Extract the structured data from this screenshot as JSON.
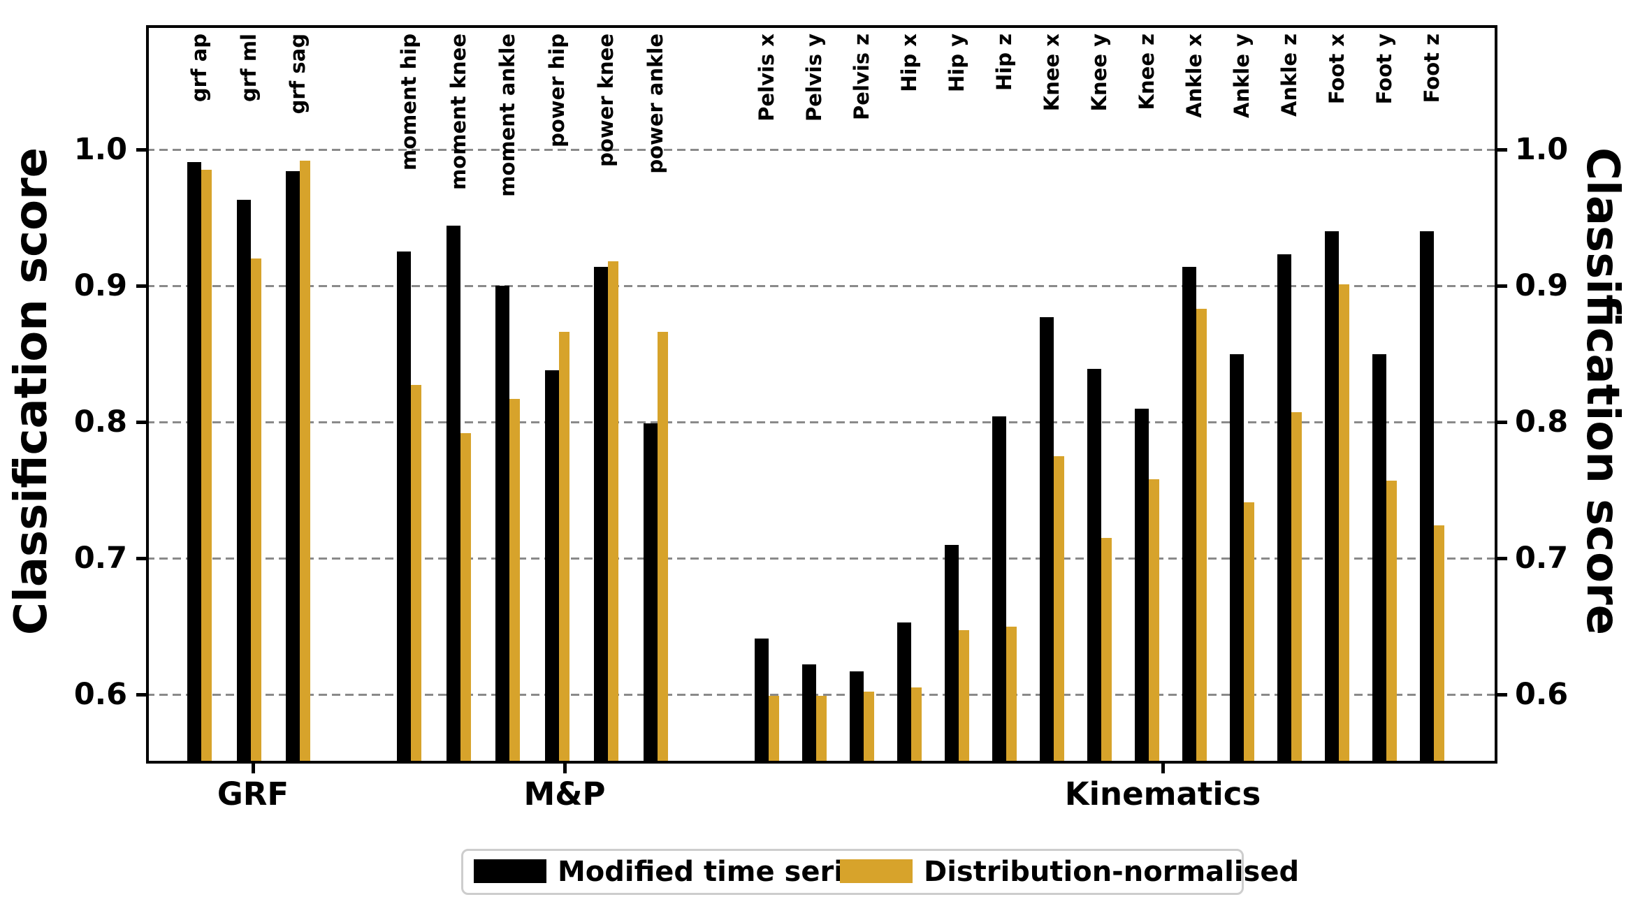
{
  "axis": {
    "ylabel_left": "Classification score",
    "ylabel_right": "Classification score",
    "yticks": [
      "1.0",
      "0.9",
      "0.8",
      "0.7",
      "0.6"
    ],
    "ytick_values": [
      1.0,
      0.9,
      0.8,
      0.7,
      0.6
    ],
    "xticks": [
      "GRF",
      "M&P",
      "Kinematics"
    ]
  },
  "legend": {
    "items": [
      {
        "label": "Modified time series",
        "color": "#000000"
      },
      {
        "label": "Distribution-normalised",
        "color": "#D7A32B"
      }
    ]
  },
  "colors": {
    "black_series": "#000000",
    "gold_series": "#D7A32B",
    "gridline": "#8a8a8a",
    "legend_border": "#cdcdcd"
  },
  "chart_data": {
    "type": "bar",
    "title": "",
    "ylabel": "Classification score",
    "ylim": [
      0.55,
      1.09
    ],
    "grid": "horizontal dashed at 0.6-1.0",
    "legend_position": "bottom center",
    "categories": [
      "grf ap",
      "grf ml",
      "grf sag",
      "moment hip",
      "moment knee",
      "moment ankle",
      "power hip",
      "power knee",
      "power ankle",
      "Pelvis x",
      "Pelvis y",
      "Pelvis z",
      "Hip x",
      "Hip y",
      "Hip z",
      "Knee x",
      "Knee y",
      "Knee z",
      "Ankle x",
      "Ankle y",
      "Ankle z",
      "Foot x",
      "Foot y",
      "Foot z"
    ],
    "groups": [
      {
        "label": "GRF",
        "count": 3
      },
      {
        "label": "M&P",
        "count": 6
      },
      {
        "label": "Kinematics",
        "count": 15
      }
    ],
    "series": [
      {
        "name": "Modified time series",
        "color": "#000000",
        "values": [
          0.991,
          0.963,
          0.984,
          0.925,
          0.944,
          0.9,
          0.838,
          0.914,
          0.799,
          0.641,
          0.622,
          0.617,
          0.653,
          0.71,
          0.804,
          0.877,
          0.839,
          0.81,
          0.914,
          0.85,
          0.923,
          0.94,
          0.85,
          0.94
        ]
      },
      {
        "name": "Distribution-normalised",
        "color": "#D7A32B",
        "values": [
          0.985,
          0.92,
          0.992,
          0.827,
          0.792,
          0.817,
          0.866,
          0.918,
          0.866,
          0.599,
          0.599,
          0.602,
          0.605,
          0.647,
          0.65,
          0.775,
          0.715,
          0.758,
          0.883,
          0.741,
          0.807,
          0.901,
          0.757,
          0.724
        ]
      }
    ]
  }
}
